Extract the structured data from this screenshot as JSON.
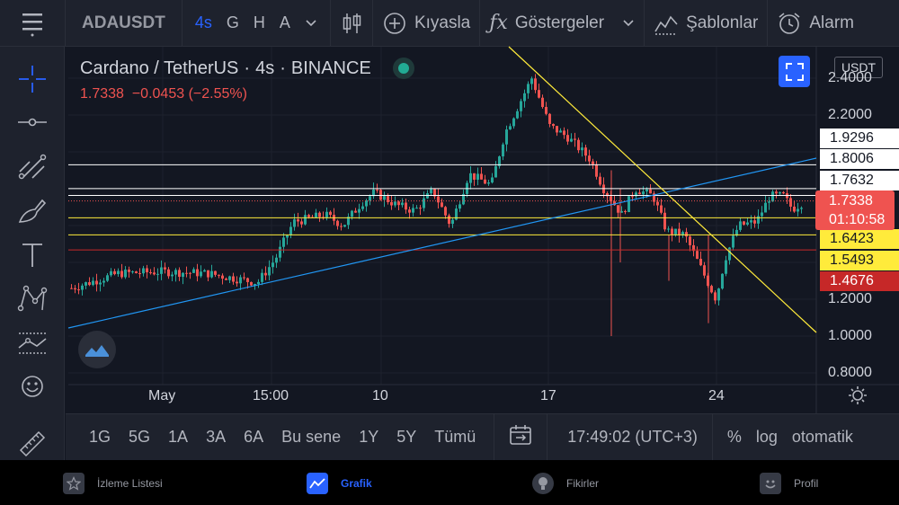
{
  "toolbar": {
    "symbol": "ADAUSDT",
    "intervals": [
      "4s",
      "G",
      "H",
      "A"
    ],
    "active_interval": "4s",
    "compare_label": "Kıyasla",
    "indicators_label": "Göstergeler",
    "templates_label": "Şablonlar",
    "alarm_label": "Alarm"
  },
  "legend": {
    "title": "Cardano / TetherUS",
    "sep1": "·",
    "interval": "4s",
    "sep2": "·",
    "exchange": "BINANCE",
    "price": "1.7338",
    "change": "−0.0453",
    "change_pct": "(−2.55%)"
  },
  "currency": "USDT",
  "price_scale": {
    "ticks": [
      "2.4000",
      "2.2000",
      "1.2000",
      "1.0000",
      "0.8000"
    ],
    "levels": [
      {
        "value": "1.9296",
        "bg": "#ffffff",
        "fg": "#131722"
      },
      {
        "value": "1.8006",
        "bg": "#ffffff",
        "fg": "#131722"
      },
      {
        "value": "1.7632",
        "bg": "#ffffff",
        "fg": "#131722"
      },
      {
        "value": "1.6423",
        "bg": "#ffeb3b",
        "fg": "#131722"
      },
      {
        "value": "1.5493",
        "bg": "#ffeb3b",
        "fg": "#131722"
      },
      {
        "value": "1.4676",
        "bg": "#c62828",
        "fg": "#ffffff"
      }
    ],
    "current": {
      "value": "1.7338",
      "countdown": "01:10:58",
      "bg": "#ef5350"
    }
  },
  "time_scale": [
    "May",
    "15:00",
    "10",
    "17",
    "24"
  ],
  "bottom": {
    "ranges": [
      "1G",
      "5G",
      "1A",
      "3A",
      "6A",
      "Bu sene",
      "1Y",
      "5Y",
      "Tümü"
    ],
    "clock": "17:49:02 (UTC+3)",
    "percent": "%",
    "log": "log",
    "auto": "otomatik"
  },
  "nav": {
    "items": [
      "İzleme Listesi",
      "Grafik",
      "Fikirler",
      "Profil"
    ],
    "active": "Grafik"
  },
  "colors": {
    "up": "#26a69a",
    "down": "#ef5350",
    "accent": "#2962ff",
    "trend_blue": "#2196f3",
    "trend_yellow": "#ffeb3b"
  }
}
